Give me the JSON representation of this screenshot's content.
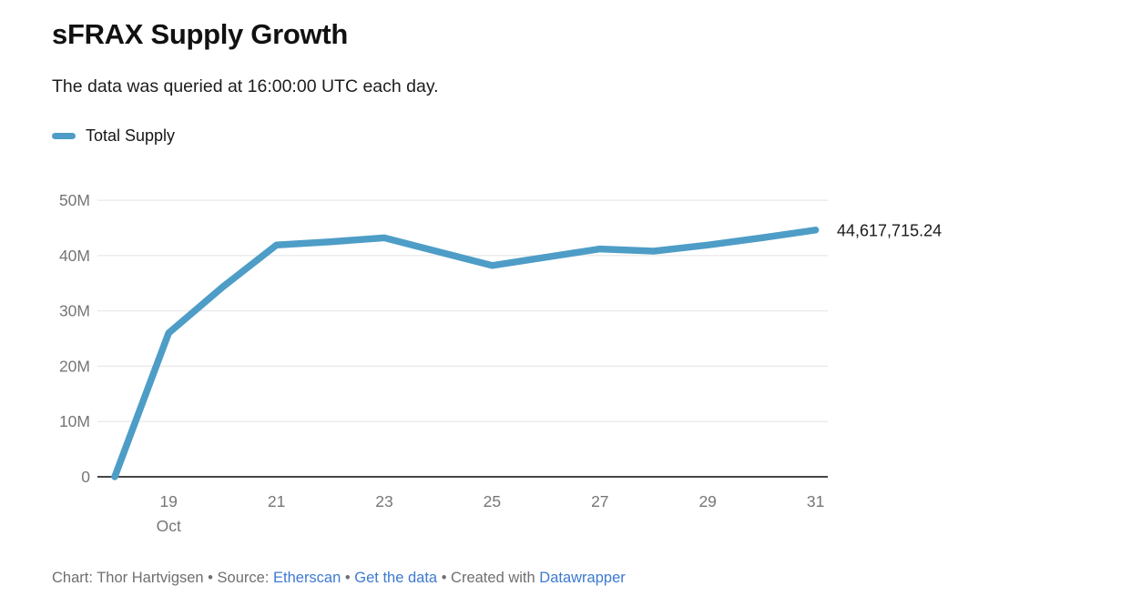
{
  "header": {
    "title": "sFRAX Supply Growth",
    "subtitle": "The data was queried at 16:00:00 UTC each day."
  },
  "legend": {
    "items": [
      {
        "label": "Total Supply",
        "color": "#4e9dc7"
      }
    ]
  },
  "chart_data": {
    "type": "line",
    "title": "sFRAX Supply Growth",
    "subtitle": "The data was queried at 16:00:00 UTC each day.",
    "x_month_label": "Oct",
    "x": [
      18,
      19,
      20,
      21,
      22,
      23,
      24,
      25,
      26,
      27,
      28,
      29,
      30,
      31
    ],
    "xlim": [
      18,
      31
    ],
    "x_tick_days": [
      19,
      21,
      23,
      25,
      27,
      29,
      31
    ],
    "series": [
      {
        "name": "Total Supply",
        "color": "#4e9dc7",
        "values": [
          0,
          26000000,
          34300000,
          41900000,
          42500000,
          43200000,
          40700000,
          38200000,
          39700000,
          41200000,
          40800000,
          41900000,
          43200000,
          44617715.24
        ]
      }
    ],
    "y_ticks": [
      {
        "value": 0,
        "label": "0"
      },
      {
        "value": 10000000,
        "label": "10M"
      },
      {
        "value": 20000000,
        "label": "20M"
      },
      {
        "value": 30000000,
        "label": "30M"
      },
      {
        "value": 40000000,
        "label": "40M"
      },
      {
        "value": 50000000,
        "label": "50M"
      }
    ],
    "ylim": [
      0,
      50000000
    ],
    "end_label": "44,617,715.24",
    "grid": "horizontal",
    "legend_position": "top-left",
    "colors": {
      "line": "#4e9dc7",
      "gridline": "#e9e9e9",
      "baseline": "#2b2b2b",
      "axis_text": "#767676",
      "end_label_text": "#1a1a1a"
    }
  },
  "footer": {
    "parts": [
      {
        "text": "Chart: Thor Hartvigsen • Source:"
      },
      {
        "text": "Etherscan"
      },
      {
        "text": "•"
      },
      {
        "text": "Get the data"
      },
      {
        "text": "• Created with"
      },
      {
        "text": "Datawrapper"
      }
    ]
  }
}
